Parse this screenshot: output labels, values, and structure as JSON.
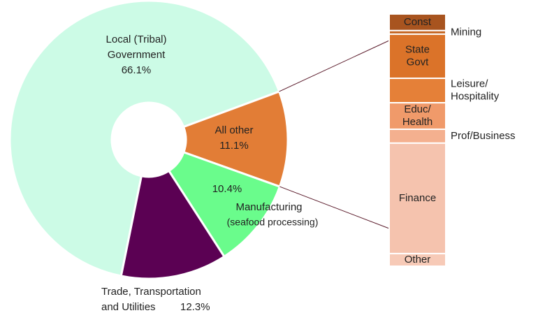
{
  "chart_data": {
    "type": "pie_of_bar",
    "pie": {
      "categories": [
        [
          "Local (Tribal)",
          "Government"
        ],
        [
          "All other"
        ],
        [
          "Manufacturing",
          "(seafood processing)"
        ],
        [
          "Trade, Transportation",
          "and Utilities"
        ]
      ],
      "values": [
        66.1,
        11.1,
        10.4,
        12.3
      ],
      "value_labels": [
        "66.1%",
        "11.1%",
        "10.4%",
        "12.3%"
      ],
      "colors": [
        "#ccfbe6",
        "#e27d36",
        "#6afc8c",
        "#5b0153"
      ]
    },
    "bar": {
      "categories": [
        [
          "Const"
        ],
        [
          "Mining"
        ],
        [
          "State",
          "Govt"
        ],
        [
          "Leisure/",
          "Hospitality"
        ],
        [
          "Educ/",
          "Health"
        ],
        [
          "Prof/Business"
        ],
        [
          "Finance"
        ],
        [
          "Other"
        ]
      ],
      "values": [
        6.6,
        1.4,
        17.5,
        9.7,
        10.5,
        5.5,
        43.8,
        5.0
      ],
      "colors": [
        "#a8541f",
        "#c4631f",
        "#db7329",
        "#e58038",
        "#f09a6a",
        "#f4b08f",
        "#f5c3ae",
        "#f7cab7"
      ]
    }
  }
}
